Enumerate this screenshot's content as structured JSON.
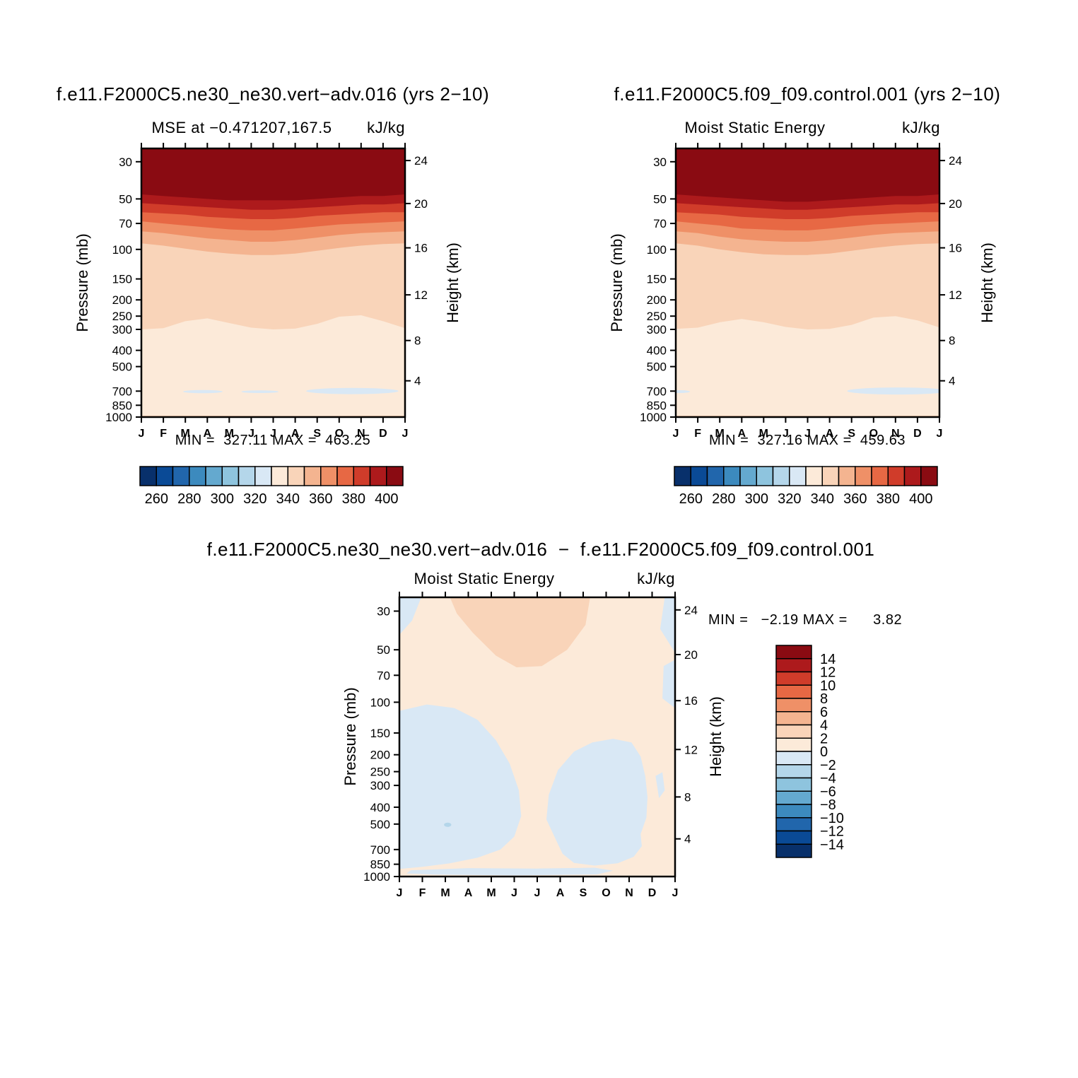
{
  "axes": {
    "pressure_label": "Pressure (mb)",
    "height_label": "Height (km)",
    "pressure_ticks": [
      "30",
      "50",
      "70",
      "100",
      "150",
      "200",
      "250",
      "300",
      "400",
      "500",
      "700",
      "850",
      "1000"
    ],
    "height_ticks": [
      "24",
      "20",
      "16",
      "12",
      "8",
      "4"
    ],
    "months": [
      "J",
      "F",
      "M",
      "A",
      "M",
      "J",
      "J",
      "A",
      "S",
      "O",
      "N",
      "D",
      "J"
    ]
  },
  "panels": [
    {
      "title": "f.e11.F2000C5.ne30_ne30.vert−adv.016 (yrs 2−10)",
      "subtitle": "MSE at −0.471207,167.5",
      "units": "kJ/kg",
      "stats": "MIN =  327.11 MAX =  463.25"
    },
    {
      "title": "f.e11.F2000C5.f09_f09.control.001 (yrs 2−10)",
      "subtitle": "Moist Static Energy",
      "units": "kJ/kg",
      "stats": "MIN =  327.16 MAX =  459.63"
    },
    {
      "title": "f.e11.F2000C5.ne30_ne30.vert−adv.016  −  f.e11.F2000C5.f09_f09.control.001",
      "subtitle": "Moist Static Energy",
      "units": "kJ/kg",
      "stats": "MIN =   −2.19 MAX =      3.82"
    }
  ],
  "palette": [
    "#08306b",
    "#0a4a96",
    "#2166ac",
    "#3c8abe",
    "#64a9cf",
    "#8ec4de",
    "#b4d6ea",
    "#d9e8f5",
    "#fcead9",
    "#f9d4b9",
    "#f4b490",
    "#ef9067",
    "#e76844",
    "#d03c2a",
    "#ad1a1c",
    "#8a0b12"
  ],
  "chart_data": [
    {
      "type": "contour",
      "dataset": "f.e11.F2000C5.ne30_ne30.vert−adv.016 (yrs 2−10)",
      "title": "MSE at −0.471207,167.5",
      "units": "kJ/kg",
      "x_categories": [
        "J",
        "F",
        "M",
        "A",
        "M",
        "J",
        "J",
        "A",
        "S",
        "O",
        "N",
        "D",
        "J"
      ],
      "y_axis": "pressure_mb_log",
      "y_range": [
        25,
        1000
      ],
      "height_axis_km": [
        24,
        20,
        16,
        12,
        8,
        4
      ],
      "contour_levels_range": [
        250,
        410
      ],
      "contour_interval": 10,
      "colorbar_labels": [
        "260",
        "280",
        "300",
        "320",
        "340",
        "360",
        "380",
        "400"
      ],
      "min": 327.11,
      "max": 463.25,
      "base_color_index": 8,
      "bands": [
        {
          "level_range": "340-350",
          "color_index": 9,
          "boundary_mb": [
            300,
            295,
            268,
            258,
            275,
            293,
            300,
            297,
            278,
            252,
            247,
            268,
            295
          ]
        },
        {
          "level_range": "350-360",
          "color_index": 10,
          "boundary_mb": [
            92,
            95,
            99,
            103,
            106,
            108,
            108,
            106,
            102,
            98,
            95,
            93,
            92
          ]
        },
        {
          "level_range": "360-370",
          "color_index": 11,
          "boundary_mb": [
            78,
            80,
            83,
            86,
            88,
            90,
            90,
            88,
            85,
            82,
            80,
            79,
            78
          ]
        },
        {
          "level_range": "370-380",
          "color_index": 12,
          "boundary_mb": [
            68,
            70,
            72,
            74,
            76,
            77,
            77,
            75,
            73,
            71,
            70,
            69,
            68
          ]
        },
        {
          "level_range": "380-390",
          "color_index": 13,
          "boundary_mb": [
            60,
            61,
            62,
            64,
            65,
            66,
            66,
            65,
            63,
            62,
            61,
            60,
            60
          ]
        },
        {
          "level_range": "390-400",
          "color_index": 14,
          "boundary_mb": [
            53,
            54,
            55,
            56,
            57,
            58,
            58,
            57,
            56,
            55,
            54,
            54,
            53
          ]
        },
        {
          "level_range": "400-410",
          "color_index": 15,
          "boundary_mb": [
            47,
            48,
            49,
            50,
            51,
            51,
            51,
            51,
            50,
            49,
            48,
            48,
            47
          ]
        }
      ],
      "regions": [
        {
          "label": "near-surface 340-350",
          "color_index": 9,
          "points": [
            [
              0,
              980
            ],
            [
              2,
              978
            ],
            [
              4,
              980
            ],
            [
              6,
              982
            ],
            [
              8,
              984
            ],
            [
              10,
              980
            ],
            [
              12,
              980
            ],
            [
              12,
              1002
            ],
            [
              0,
              1002
            ]
          ]
        }
      ],
      "lenses": [
        {
          "label": "320-330 minimum",
          "color_index": 7,
          "month": 2.8,
          "p": 705,
          "dm": 0.9,
          "dp": 16
        },
        {
          "label": "320-330 minimum",
          "color_index": 7,
          "month": 5.4,
          "p": 706,
          "dm": 0.85,
          "dp": 13
        },
        {
          "label": "320-330 minimum",
          "color_index": 7,
          "month": 9.6,
          "p": 700,
          "dm": 2.1,
          "dp": 30
        }
      ]
    },
    {
      "type": "contour",
      "dataset": "f.e11.F2000C5.f09_f09.control.001 (yrs 2−10)",
      "title": "Moist Static Energy",
      "units": "kJ/kg",
      "x_categories": [
        "J",
        "F",
        "M",
        "A",
        "M",
        "J",
        "J",
        "A",
        "S",
        "O",
        "N",
        "D",
        "J"
      ],
      "y_axis": "pressure_mb_log",
      "y_range": [
        25,
        1000
      ],
      "height_axis_km": [
        24,
        20,
        16,
        12,
        8,
        4
      ],
      "contour_levels_range": [
        250,
        410
      ],
      "contour_interval": 10,
      "colorbar_labels": [
        "260",
        "280",
        "300",
        "320",
        "340",
        "360",
        "380",
        "400"
      ],
      "min": 327.16,
      "max": 459.63,
      "base_color_index": 8,
      "bands": [
        {
          "level_range": "340-350",
          "color_index": 9,
          "boundary_mb": [
            298,
            293,
            272,
            260,
            272,
            290,
            300,
            298,
            282,
            255,
            250,
            265,
            292
          ]
        },
        {
          "level_range": "350-360",
          "color_index": 10,
          "boundary_mb": [
            92,
            95,
            100,
            104,
            107,
            108,
            108,
            106,
            102,
            98,
            95,
            93,
            92
          ]
        },
        {
          "level_range": "360-370",
          "color_index": 11,
          "boundary_mb": [
            78,
            80,
            84,
            87,
            89,
            90,
            90,
            88,
            85,
            82,
            80,
            79,
            78
          ]
        },
        {
          "level_range": "370-380",
          "color_index": 12,
          "boundary_mb": [
            68,
            70,
            72,
            75,
            76,
            77,
            77,
            75,
            73,
            71,
            70,
            69,
            68
          ]
        },
        {
          "level_range": "380-390",
          "color_index": 13,
          "boundary_mb": [
            60,
            61,
            62,
            64,
            65,
            66,
            66,
            65,
            63,
            62,
            61,
            60,
            60
          ]
        },
        {
          "level_range": "390-400",
          "color_index": 14,
          "boundary_mb": [
            53,
            54,
            55,
            56,
            57,
            58,
            58,
            57,
            56,
            55,
            54,
            54,
            53
          ]
        },
        {
          "level_range": "400-410",
          "color_index": 15,
          "boundary_mb": [
            47,
            48,
            49,
            50,
            51,
            52,
            52,
            51,
            50,
            49,
            48,
            48,
            47
          ]
        }
      ],
      "regions": [
        {
          "label": "near-surface 340-350",
          "color_index": 9,
          "points": [
            [
              0,
              980
            ],
            [
              2,
              978
            ],
            [
              4,
              980
            ],
            [
              6,
              982
            ],
            [
              8,
              984
            ],
            [
              10,
              980
            ],
            [
              12,
              980
            ],
            [
              12,
              1002
            ],
            [
              0,
              1002
            ]
          ]
        }
      ],
      "lenses": [
        {
          "label": "320-330 minimum",
          "color_index": 7,
          "month": 0.15,
          "p": 705,
          "dm": 0.5,
          "dp": 14
        },
        {
          "label": "320-330 minimum",
          "color_index": 7,
          "month": 10.1,
          "p": 700,
          "dm": 2.3,
          "dp": 34
        }
      ]
    },
    {
      "type": "contour-difference",
      "dataset": "f.e11.F2000C5.ne30_ne30.vert−adv.016 − f.e11.F2000C5.f09_f09.control.001",
      "title": "Moist Static Energy",
      "units": "kJ/kg",
      "x_categories": [
        "J",
        "F",
        "M",
        "A",
        "M",
        "J",
        "J",
        "A",
        "S",
        "O",
        "N",
        "D",
        "J"
      ],
      "y_axis": "pressure_mb_log",
      "y_range": [
        25,
        1000
      ],
      "height_axis_km": [
        24,
        20,
        16,
        12,
        8,
        4
      ],
      "contour_levels_range": [
        -16,
        16
      ],
      "contour_interval": 2,
      "colorbar_labels": [
        "14",
        "12",
        "10",
        "8",
        "6",
        "4",
        "2",
        "0",
        "−2",
        "−4",
        "−6",
        "−8",
        "−10",
        "−12",
        "−14"
      ],
      "min": -2.19,
      "max": 3.82,
      "base_color_index": 8,
      "bands": [],
      "regions": [
        {
          "label": "+2 to +4",
          "color_index": 9,
          "points": [
            [
              2.2,
              25
            ],
            [
              8.3,
              25
            ],
            [
              8.1,
              36
            ],
            [
              7.3,
              50
            ],
            [
              6.2,
              62
            ],
            [
              5.1,
              63
            ],
            [
              4.2,
              54
            ],
            [
              3.2,
              40
            ],
            [
              2.5,
              31
            ]
          ]
        },
        {
          "label": "-2 to 0 top-left",
          "color_index": 7,
          "points": [
            [
              0,
              25
            ],
            [
              0.95,
              25
            ],
            [
              0.55,
              34
            ],
            [
              0,
              41
            ]
          ]
        },
        {
          "label": "-2 to 0 top-right",
          "color_index": 7,
          "points": [
            [
              11.55,
              25
            ],
            [
              12,
              25
            ],
            [
              12,
              52
            ],
            [
              11.35,
              38
            ]
          ]
        },
        {
          "label": "-2 to 0 right-edge",
          "color_index": 7,
          "points": [
            [
              11.5,
              62
            ],
            [
              12,
              57
            ],
            [
              12,
              108
            ],
            [
              11.45,
              95
            ]
          ]
        },
        {
          "label": "-2 to 0 left column",
          "color_index": 7,
          "points": [
            [
              0,
              112
            ],
            [
              1.2,
              103
            ],
            [
              2.4,
              108
            ],
            [
              3.4,
              126
            ],
            [
              4.2,
              165
            ],
            [
              4.8,
              225
            ],
            [
              5.2,
              320
            ],
            [
              5.3,
              450
            ],
            [
              5.0,
              590
            ],
            [
              4.4,
              700
            ],
            [
              3.4,
              780
            ],
            [
              2.2,
              840
            ],
            [
              1.0,
              880
            ],
            [
              0,
              905
            ]
          ]
        },
        {
          "label": "-2 to 0 bottom strip",
          "color_index": 7,
          "points": [
            [
              0.3,
              960
            ],
            [
              0.5,
              920
            ],
            [
              3,
              895
            ],
            [
              6,
              900
            ],
            [
              8.5,
              890
            ],
            [
              9.3,
              925
            ],
            [
              8.6,
              972
            ],
            [
              5,
              985
            ],
            [
              1.5,
              975
            ]
          ]
        },
        {
          "label": "-2 to 0 right column",
          "color_index": 7,
          "points": [
            [
              6.5,
              340
            ],
            [
              6.9,
              245
            ],
            [
              7.6,
              192
            ],
            [
              8.4,
              170
            ],
            [
              9.3,
              162
            ],
            [
              10.1,
              170
            ],
            [
              10.5,
              205
            ],
            [
              10.7,
              265
            ],
            [
              10.8,
              350
            ],
            [
              10.75,
              460
            ],
            [
              10.5,
              570
            ],
            [
              10.55,
              670
            ],
            [
              10.2,
              770
            ],
            [
              9.5,
              840
            ],
            [
              8.5,
              865
            ],
            [
              7.6,
              835
            ],
            [
              7.1,
              740
            ],
            [
              6.8,
              610
            ],
            [
              6.4,
              470
            ]
          ]
        },
        {
          "label": "-2 to 0 sliver near D",
          "color_index": 7,
          "points": [
            [
              11.15,
              265
            ],
            [
              11.45,
              252
            ],
            [
              11.55,
              320
            ],
            [
              11.3,
              355
            ]
          ]
        }
      ],
      "lenses": [
        {
          "label": "-4 to -2 spot",
          "color_index": 6,
          "month": 2.1,
          "p": 505,
          "dm": 0.16,
          "dp": 14
        }
      ]
    }
  ]
}
